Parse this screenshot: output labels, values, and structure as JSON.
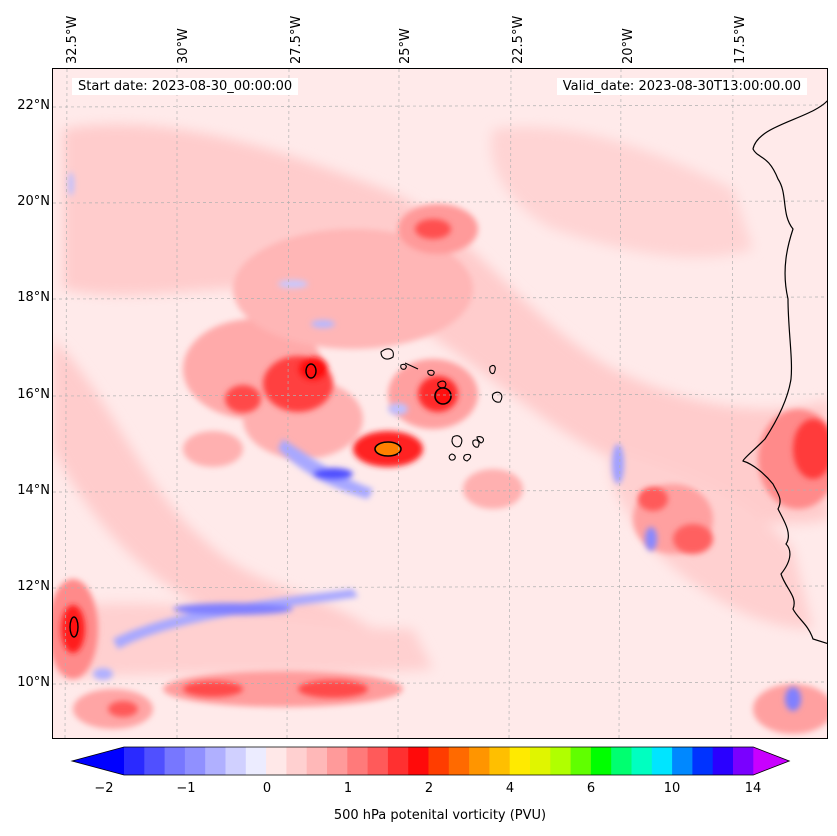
{
  "map": {
    "start_label": "Start date: 2023-08-30_00:00:00",
    "valid_label": "Valid_date: 2023-08-30T13:00:00.00",
    "lon_labels": [
      "32.5°W",
      "30°W",
      "27.5°W",
      "25°W",
      "22.5°W",
      "20°W",
      "17.5°W"
    ],
    "lat_labels": [
      "22°N",
      "20°N",
      "18°N",
      "16°N",
      "14°N",
      "12°N",
      "10°N"
    ]
  },
  "colorbar": {
    "label": "500 hPa potenital vorticity (PVU)",
    "ticks": [
      "−2",
      "−1",
      "0",
      "1",
      "2",
      "4",
      "6",
      "10",
      "14"
    ],
    "colors": [
      "#0000ff",
      "#2a2aff",
      "#5050ff",
      "#7777ff",
      "#9090ff",
      "#b0b0ff",
      "#d0d0ff",
      "#ececff",
      "#ffe8e8",
      "#ffd0d0",
      "#ffb8b8",
      "#ff9a9a",
      "#ff7a7a",
      "#ff5a5a",
      "#ff3030",
      "#ff0a0a",
      "#ff3d00",
      "#ff6a00",
      "#ff9500",
      "#ffbf00",
      "#ffea00",
      "#e0f500",
      "#b0ff00",
      "#60ff00",
      "#00ff00",
      "#00ff70",
      "#00ffc0",
      "#00e5ff",
      "#0088ff",
      "#0033ff",
      "#2a00ff",
      "#7a00ff",
      "#c800ff"
    ]
  },
  "colors": {
    "background": "#ffeaea",
    "neg_pv": "#c8c8ff",
    "strong_neg_pv": "#3030ff",
    "pos_pv": "#ffaaaa",
    "strong_pos_pv": "#ff1010",
    "max_pv": "#ff7700"
  }
}
